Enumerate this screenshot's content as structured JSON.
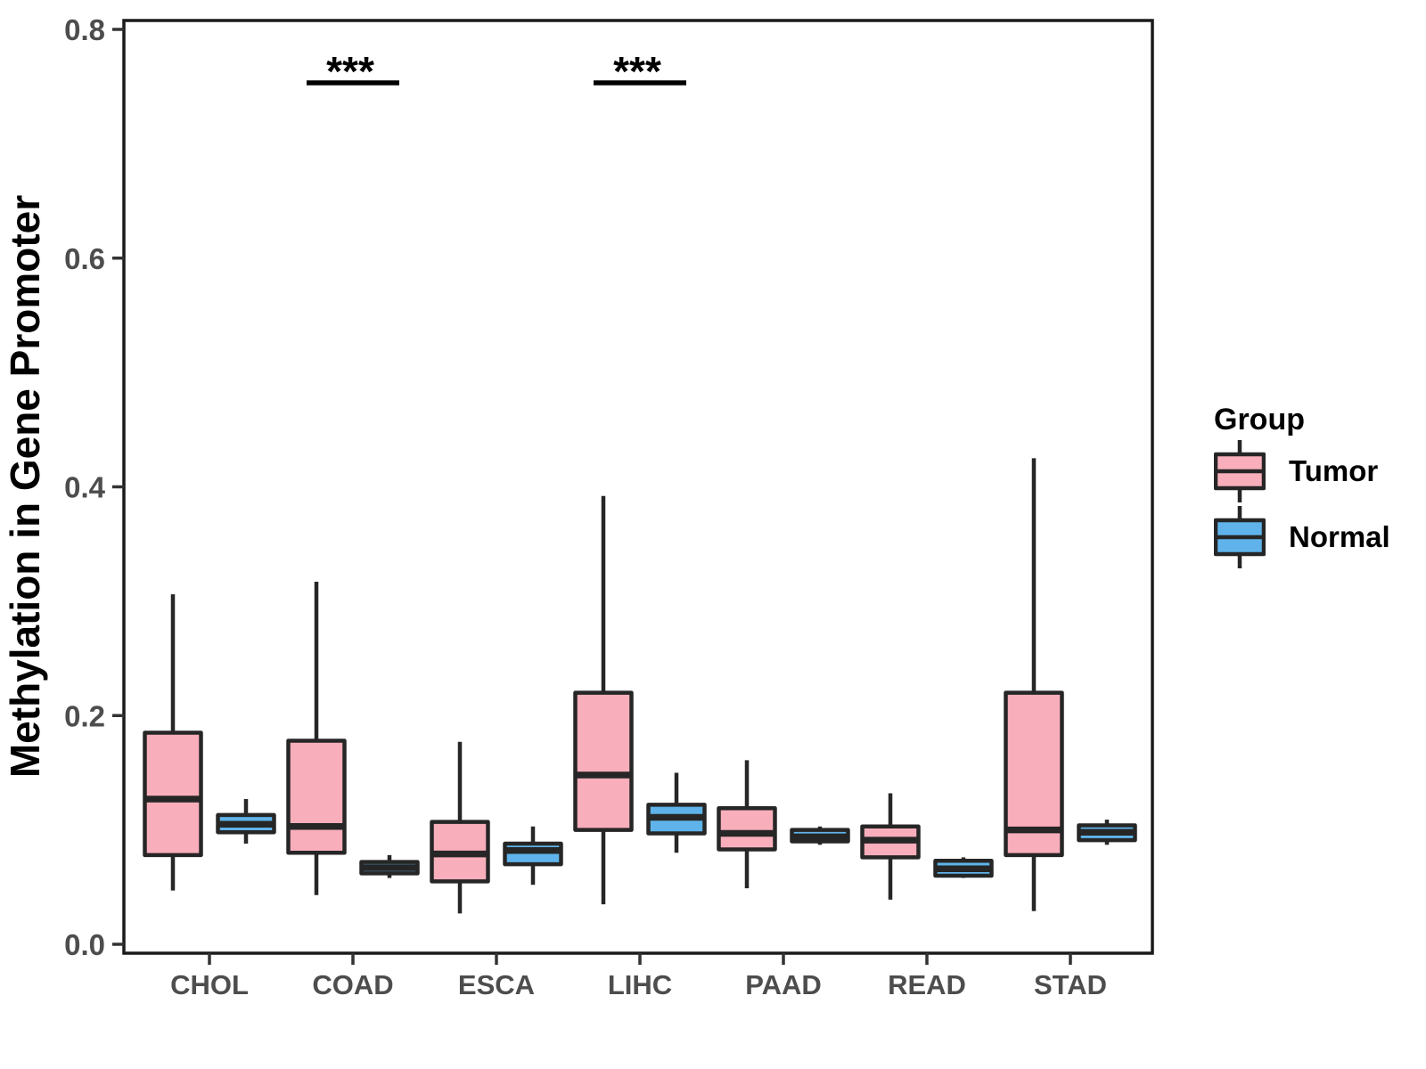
{
  "chart_data": {
    "type": "boxplot",
    "title": "",
    "xlabel": "",
    "ylabel": "Methylation in Gene Promoter",
    "categories": [
      "CHOL",
      "COAD",
      "ESCA",
      "LIHC",
      "PAAD",
      "READ",
      "STAD"
    ],
    "y_axis": {
      "min": 0,
      "max": 0.8,
      "tick_values": [
        0,
        0.2,
        0.4,
        0.6,
        0.8
      ],
      "tick_labels": [
        "0.0",
        "0.2",
        "0.4",
        "0.6",
        "0.8"
      ]
    },
    "grid": false,
    "series": [
      {
        "name": "Tumor",
        "fill": "#F8AEBB",
        "boxes": [
          {
            "category": "CHOL",
            "low": 0.047,
            "q1": 0.078,
            "median": 0.127,
            "q3": 0.185,
            "high": 0.306
          },
          {
            "category": "COAD",
            "low": 0.043,
            "q1": 0.08,
            "median": 0.103,
            "q3": 0.178,
            "high": 0.317
          },
          {
            "category": "ESCA",
            "low": 0.027,
            "q1": 0.055,
            "median": 0.079,
            "q3": 0.107,
            "high": 0.177
          },
          {
            "category": "LIHC",
            "low": 0.035,
            "q1": 0.1,
            "median": 0.148,
            "q3": 0.22,
            "high": 0.392
          },
          {
            "category": "PAAD",
            "low": 0.049,
            "q1": 0.083,
            "median": 0.097,
            "q3": 0.119,
            "high": 0.161
          },
          {
            "category": "READ",
            "low": 0.039,
            "q1": 0.076,
            "median": 0.091,
            "q3": 0.103,
            "high": 0.132
          },
          {
            "category": "STAD",
            "low": 0.029,
            "q1": 0.078,
            "median": 0.1,
            "q3": 0.22,
            "high": 0.425
          }
        ]
      },
      {
        "name": "Normal",
        "fill": "#5FB3EA",
        "boxes": [
          {
            "category": "CHOL",
            "low": 0.088,
            "q1": 0.098,
            "median": 0.105,
            "q3": 0.113,
            "high": 0.127
          },
          {
            "category": "COAD",
            "low": 0.058,
            "q1": 0.062,
            "median": 0.067,
            "q3": 0.072,
            "high": 0.078
          },
          {
            "category": "ESCA",
            "low": 0.052,
            "q1": 0.07,
            "median": 0.082,
            "q3": 0.088,
            "high": 0.103
          },
          {
            "category": "LIHC",
            "low": 0.08,
            "q1": 0.097,
            "median": 0.111,
            "q3": 0.122,
            "high": 0.15
          },
          {
            "category": "PAAD",
            "low": 0.087,
            "q1": 0.09,
            "median": 0.094,
            "q3": 0.1,
            "high": 0.103
          },
          {
            "category": "READ",
            "low": 0.058,
            "q1": 0.06,
            "median": 0.066,
            "q3": 0.073,
            "high": 0.076
          },
          {
            "category": "STAD",
            "low": 0.087,
            "q1": 0.091,
            "median": 0.098,
            "q3": 0.104,
            "high": 0.109
          }
        ]
      }
    ],
    "annotations": [
      {
        "category": "COAD",
        "label": "***"
      },
      {
        "category": "LIHC",
        "label": "***"
      }
    ],
    "legend": {
      "title": "Group",
      "position": "right",
      "entries": [
        {
          "label": "Tumor",
          "fill": "#F8AEBB"
        },
        {
          "label": "Normal",
          "fill": "#5FB3EA"
        }
      ]
    },
    "style": {
      "box_border": "#262626",
      "panel_border": "#1A1A1A",
      "tick_color": "#333333",
      "tick_label_color": "#4D4D4D",
      "annotation_color": "#000000"
    }
  }
}
